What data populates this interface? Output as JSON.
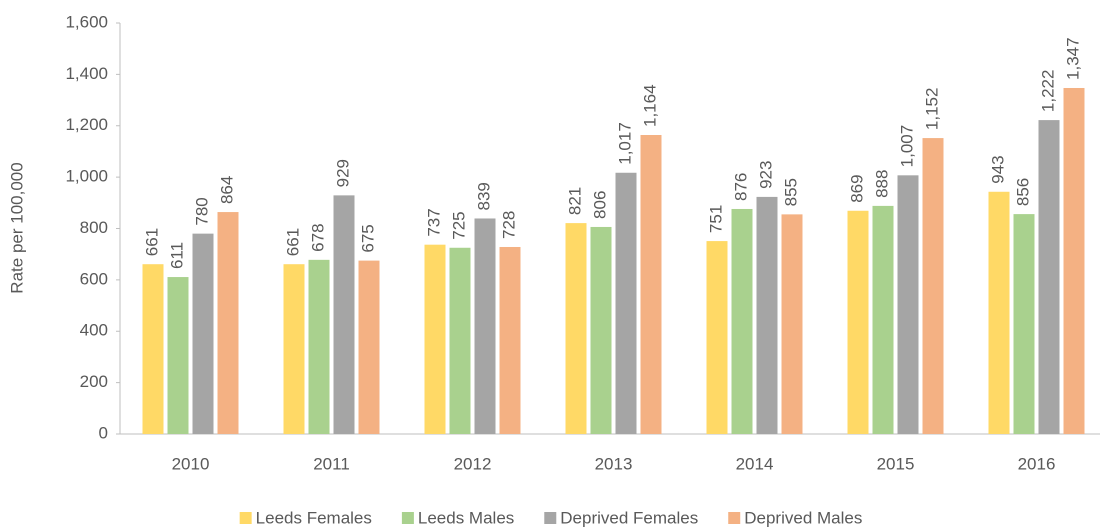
{
  "chart_data": {
    "type": "bar",
    "y_label": "Rate per 100,000",
    "categories": [
      "2010",
      "2011",
      "2012",
      "2013",
      "2014",
      "2015",
      "2016"
    ],
    "series": [
      {
        "name": "Leeds Females",
        "color": "#ffd966",
        "values": [
          661,
          661,
          737,
          821,
          751,
          869,
          943
        ],
        "value_labels": [
          "661",
          "661",
          "737",
          "821",
          "751",
          "869",
          "943"
        ]
      },
      {
        "name": "Leeds Males",
        "color": "#a9d18e",
        "values": [
          611,
          678,
          725,
          806,
          876,
          888,
          856
        ],
        "value_labels": [
          "611",
          "678",
          "725",
          "806",
          "876",
          "888",
          "856"
        ]
      },
      {
        "name": "Deprived Females",
        "color": "#a5a5a5",
        "values": [
          780,
          929,
          839,
          1017,
          923,
          1007,
          1222
        ],
        "value_labels": [
          "780",
          "929",
          "839",
          "1,017",
          "923",
          "1,007",
          "1,222"
        ]
      },
      {
        "name": "Deprived Males",
        "color": "#f4b183",
        "values": [
          864,
          675,
          728,
          1164,
          855,
          1152,
          1347
        ],
        "value_labels": [
          "864",
          "675",
          "728",
          "1,164",
          "855",
          "1,152",
          "1,347"
        ]
      }
    ],
    "ylim": [
      0,
      1600
    ],
    "yticks": [
      0,
      200,
      400,
      600,
      800,
      {
        "value": 1000,
        "label": "1,000"
      },
      {
        "value": 1200,
        "label": "1,200"
      },
      {
        "value": 1400,
        "label": "1,400"
      },
      {
        "value": 1600,
        "label": "1,600"
      }
    ],
    "legend": "bottom"
  }
}
